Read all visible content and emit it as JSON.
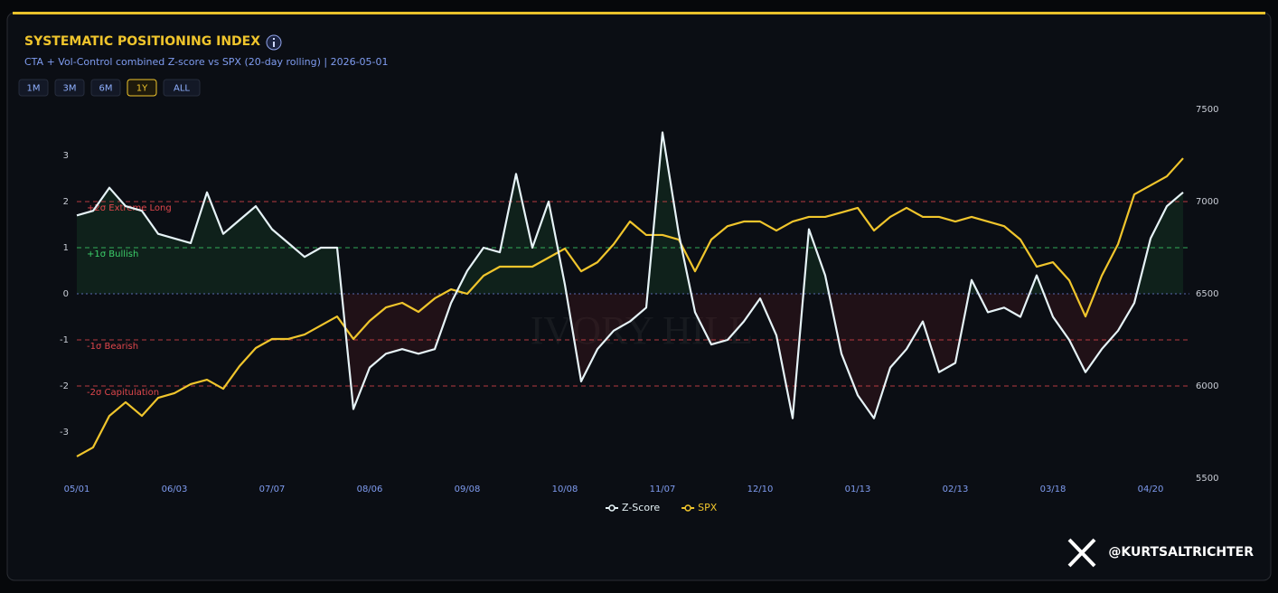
{
  "header": {
    "title": "SYSTEMATIC POSITIONING INDEX",
    "subtitle": "CTA + Vol-Control combined Z-score vs SPX (20-day rolling) | 2026-05-01",
    "ranges": [
      "1M",
      "3M",
      "6M",
      "1Y",
      "ALL"
    ],
    "active_range": "1Y"
  },
  "chart_data": {
    "type": "line",
    "categories": [
      "05/01",
      null,
      null,
      null,
      null,
      null,
      "06/03",
      null,
      null,
      null,
      null,
      null,
      "07/07",
      null,
      null,
      null,
      null,
      null,
      "08/06",
      null,
      null,
      null,
      null,
      null,
      "09/08",
      null,
      null,
      null,
      null,
      null,
      "10/08",
      null,
      null,
      null,
      null,
      null,
      "11/07",
      null,
      null,
      null,
      null,
      null,
      "12/10",
      null,
      null,
      null,
      null,
      null,
      "01/13",
      null,
      null,
      null,
      null,
      null,
      "02/13",
      null,
      null,
      null,
      null,
      null,
      "03/18",
      null,
      null,
      null,
      null,
      null,
      "04/20",
      null,
      null
    ],
    "series": [
      {
        "name": "Z-Score",
        "color": "#e6f3f7",
        "values": [
          1.7,
          1.8,
          2.3,
          1.9,
          1.8,
          1.3,
          1.2,
          1.1,
          2.2,
          1.3,
          1.6,
          1.9,
          1.4,
          1.1,
          0.8,
          1.0,
          1.0,
          -2.5,
          -1.6,
          -1.3,
          -1.2,
          -1.3,
          -1.2,
          -0.2,
          0.5,
          1.0,
          0.9,
          2.6,
          1.0,
          2.0,
          0.2,
          -1.9,
          -1.2,
          -0.8,
          -0.6,
          -0.3,
          3.5,
          1.3,
          -0.4,
          -1.1,
          -1.0,
          -0.6,
          -0.1,
          -0.9,
          -2.7,
          1.4,
          0.4,
          -1.3,
          -2.2,
          -2.7,
          -1.6,
          -1.2,
          -0.6,
          -1.7,
          -1.5,
          0.3,
          -0.4,
          -0.3,
          -0.5,
          0.4,
          -0.5,
          -1.0,
          -1.7,
          -1.2,
          -0.8,
          -0.2,
          1.2,
          1.9,
          2.2
        ]
      },
      {
        "name": "SPX",
        "color": "#f0c52c",
        "axis": "y2",
        "values": [
          5618,
          5667,
          5838,
          5912,
          5838,
          5936,
          5961,
          6010,
          6034,
          5985,
          6108,
          6206,
          6255,
          6255,
          6279,
          6328,
          6377,
          6255,
          6353,
          6426,
          6451,
          6402,
          6475,
          6524,
          6500,
          6598,
          6647,
          6647,
          6647,
          6696,
          6745,
          6622,
          6671,
          6769,
          6892,
          6819,
          6819,
          6794,
          6622,
          6794,
          6867,
          6892,
          6892,
          6843,
          6892,
          6917,
          6917,
          6941,
          6966,
          6843,
          6917,
          6966,
          6917,
          6917,
          6892,
          6917,
          6892,
          6867,
          6794,
          6647,
          6671,
          6573,
          6377,
          6598,
          6769,
          7039,
          7088,
          7137,
          7235
        ]
      }
    ],
    "ylim": [
      -4,
      4
    ],
    "yticks": [
      -3,
      -2,
      -1,
      0,
      1,
      2,
      3
    ],
    "y2lim": [
      5500,
      7500
    ],
    "y2ticks": [
      5500,
      6000,
      6500,
      7000,
      7500
    ],
    "reference_lines": [
      {
        "value": 2,
        "label": "+2σ Extreme Long",
        "color": "#e0474c"
      },
      {
        "value": 1,
        "label": "+1σ Bullish",
        "color": "#3ccf6a"
      },
      {
        "value": 0,
        "color": "#6d7fd6"
      },
      {
        "value": -1,
        "label": "-1σ Bearish",
        "color": "#e0474c"
      },
      {
        "value": -2,
        "label": "-2σ Capitulation",
        "color": "#e0474c"
      }
    ],
    "watermark": "IVORY HILL"
  },
  "footer": {
    "handle": "@KURTSALTRICHTER"
  }
}
